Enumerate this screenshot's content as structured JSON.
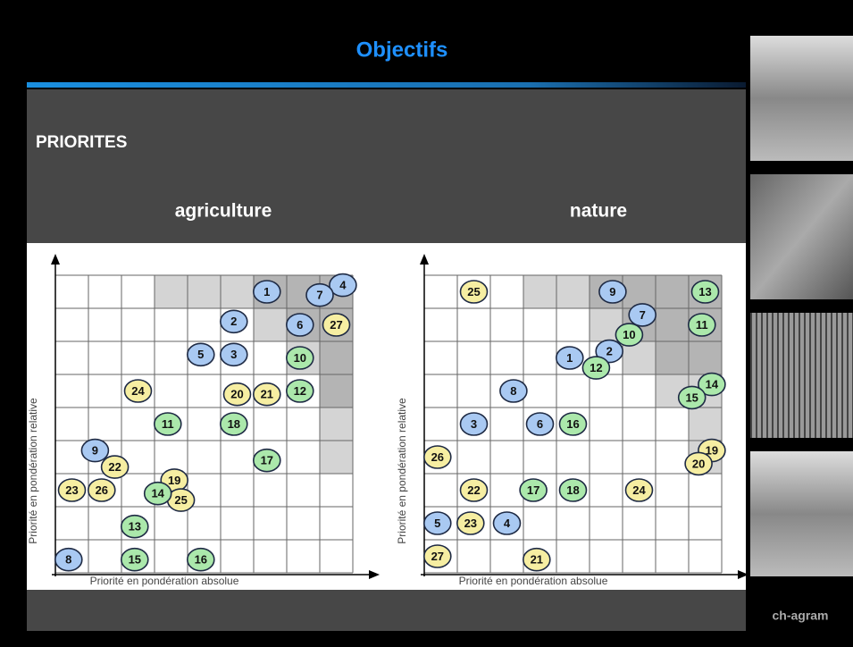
{
  "header": {
    "title": "Objectifs"
  },
  "section": "PRIORITES",
  "footer": "ch-agram",
  "chart_data": [
    {
      "type": "scatter",
      "title": "agriculture",
      "x_label": "Priorité en pondération absolue",
      "y_label": "Priorité en pondération relative",
      "xlim": [
        0,
        9
      ],
      "ylim": [
        0,
        9
      ],
      "series": [
        {
          "color": "#a9c9f2",
          "labels": [
            "1",
            "4",
            "7",
            "2",
            "6",
            "5",
            "3",
            "9",
            "8"
          ],
          "x": [
            6.4,
            8.7,
            8.0,
            5.4,
            7.4,
            4.4,
            5.4,
            1.2,
            0.4
          ],
          "values": [
            8.5,
            8.7,
            8.4,
            7.6,
            7.5,
            6.6,
            6.6,
            3.7,
            0.4
          ]
        },
        {
          "color": "#f6eea2",
          "labels": [
            "27",
            "24",
            "20",
            "21",
            "22",
            "19",
            "23",
            "26",
            "25"
          ],
          "x": [
            8.5,
            2.5,
            5.5,
            6.4,
            1.8,
            3.6,
            0.5,
            1.4,
            3.8
          ],
          "values": [
            7.5,
            5.5,
            5.4,
            5.4,
            3.2,
            2.8,
            2.5,
            2.5,
            2.2
          ]
        },
        {
          "color": "#abe8ab",
          "labels": [
            "10",
            "12",
            "11",
            "18",
            "17",
            "14",
            "13",
            "15",
            "16"
          ],
          "x": [
            7.4,
            7.4,
            3.4,
            5.4,
            6.4,
            3.1,
            2.4,
            2.4,
            4.4
          ],
          "values": [
            6.5,
            5.5,
            4.5,
            4.5,
            3.4,
            2.4,
            1.4,
            0.4,
            0.4
          ]
        }
      ]
    },
    {
      "type": "scatter",
      "title": "nature",
      "x_label": "Priorité en pondération absolue",
      "y_label": "Priorité en pondération relative",
      "xlim": [
        0,
        9
      ],
      "ylim": [
        0,
        9
      ],
      "series": [
        {
          "color": "#a9c9f2",
          "labels": [
            "9",
            "7",
            "2",
            "1",
            "8",
            "3",
            "6",
            "5",
            "4"
          ],
          "x": [
            5.7,
            6.6,
            5.6,
            4.4,
            2.7,
            1.5,
            3.5,
            0.4,
            2.5
          ],
          "values": [
            8.5,
            7.8,
            6.7,
            6.5,
            5.5,
            4.5,
            4.5,
            1.5,
            1.5
          ]
        },
        {
          "color": "#f6eea2",
          "labels": [
            "25",
            "26",
            "22",
            "24",
            "19",
            "20",
            "23",
            "27",
            "21"
          ],
          "x": [
            1.5,
            0.4,
            1.5,
            6.5,
            8.7,
            8.3,
            1.4,
            0.4,
            3.4
          ],
          "values": [
            8.5,
            3.5,
            2.5,
            2.5,
            3.7,
            3.3,
            1.5,
            0.5,
            0.4
          ]
        },
        {
          "color": "#abe8ab",
          "labels": [
            "13",
            "11",
            "10",
            "12",
            "14",
            "15",
            "16",
            "17",
            "18"
          ],
          "x": [
            8.5,
            8.4,
            6.2,
            5.2,
            8.7,
            8.1,
            4.5,
            3.3,
            4.5
          ],
          "values": [
            8.5,
            7.5,
            7.2,
            6.2,
            5.7,
            5.3,
            4.5,
            2.5,
            2.5
          ]
        }
      ]
    }
  ]
}
